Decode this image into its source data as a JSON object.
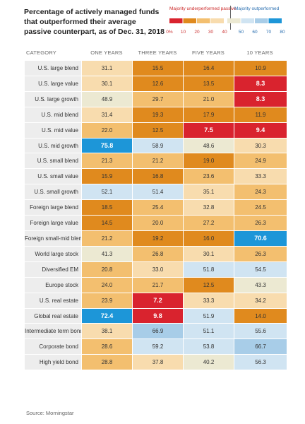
{
  "title": "Percentage of actively managed funds that outperformed their average passive counterpart, as of Dec. 31, 2018",
  "source": "Source: Morningstar",
  "legend": {
    "under_label": "Majority underperformed passive",
    "out_label": "Majority outperformed",
    "ticks": [
      "0%",
      "10",
      "20",
      "30",
      "40",
      "50",
      "60",
      "70",
      "80"
    ],
    "colors": [
      "#d9232e",
      "#e08a1e",
      "#f3bf6f",
      "#f8dcae",
      "#ece9d2",
      "#d0e4f2",
      "#a8cde8",
      "#1d96d8"
    ]
  },
  "chart_data": {
    "type": "table",
    "title": "Percentage of actively managed funds that outperformed their average passive counterpart, as of Dec. 31, 2018",
    "columns": [
      "CATEGORY",
      "ONE YEARS",
      "THREE YEARS",
      "FIVE YEARS",
      "10 YEARS"
    ],
    "rows": [
      {
        "category": "U.S. large blend",
        "values": [
          "31.1",
          "15.5",
          "16.4",
          "10.9"
        ]
      },
      {
        "category": "U.S. large value",
        "values": [
          "30.1",
          "12.6",
          "13.5",
          "8.3"
        ]
      },
      {
        "category": "U.S. large growth",
        "values": [
          "48.9",
          "29.7",
          "21.0",
          "8.3"
        ]
      },
      {
        "category": "U.S. mid blend",
        "values": [
          "31.4",
          "19.3",
          "17.9",
          "11.9"
        ]
      },
      {
        "category": "U.S. mid value",
        "values": [
          "22.0",
          "12.5",
          "7.5",
          "9.4"
        ]
      },
      {
        "category": "U.S. mid growth",
        "values": [
          "75.8",
          "58.9",
          "48.6",
          "30.3"
        ]
      },
      {
        "category": "U.S. small blend",
        "values": [
          "21.3",
          "21.2",
          "19.0",
          "24.9"
        ]
      },
      {
        "category": "U.S. small value",
        "values": [
          "15.9",
          "16.8",
          "23.6",
          "33.3"
        ]
      },
      {
        "category": "U.S. small growth",
        "values": [
          "52.1",
          "51.4",
          "35.1",
          "24.3"
        ]
      },
      {
        "category": "Foreign large blend",
        "values": [
          "18.5",
          "25.4",
          "32.8",
          "24.5"
        ]
      },
      {
        "category": "Foreign large value",
        "values": [
          "14.5",
          "20.0",
          "27.2",
          "26.3"
        ]
      },
      {
        "category": "Foreign small-mid blend",
        "values": [
          "21.2",
          "19.2",
          "16.0",
          "70.6"
        ]
      },
      {
        "category": "World large stock",
        "values": [
          "41.3",
          "26.8",
          "30.1",
          "26.3"
        ]
      },
      {
        "category": "Diversified EM",
        "values": [
          "20.8",
          "33.0",
          "51.8",
          "54.5"
        ]
      },
      {
        "category": "Europe stock",
        "values": [
          "24.0",
          "21.7",
          "12.5",
          "43.3"
        ]
      },
      {
        "category": "U.S. real estate",
        "values": [
          "23.9",
          "7.2",
          "33.3",
          "34.2"
        ]
      },
      {
        "category": "Global real estate",
        "values": [
          "72.4",
          "9.8",
          "51.9",
          "14.0"
        ]
      },
      {
        "category": "Intermediate term bond",
        "values": [
          "38.1",
          "66.9",
          "51.1",
          "55.6"
        ]
      },
      {
        "category": "Corporate bond",
        "values": [
          "28.6",
          "59.2",
          "53.8",
          "66.7"
        ]
      },
      {
        "category": "High yield bond",
        "values": [
          "28.8",
          "37.8",
          "40.2",
          "56.3"
        ]
      }
    ]
  }
}
